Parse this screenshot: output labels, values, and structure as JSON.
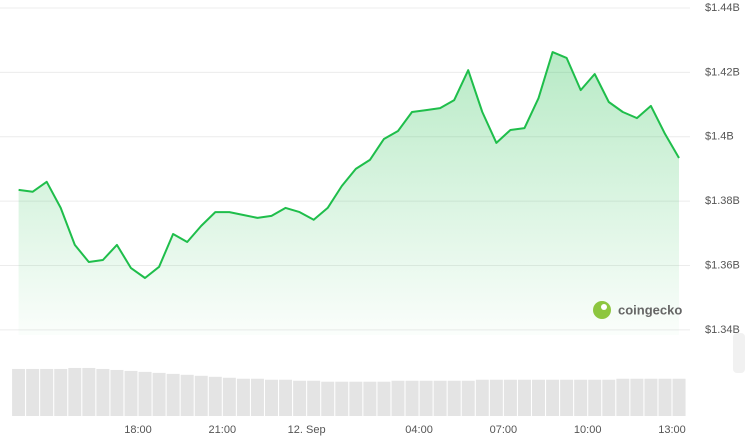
{
  "chart_data": [
    {
      "type": "area",
      "x": [
        13.75,
        14.25,
        14.75,
        15.25,
        15.75,
        16.25,
        16.75,
        17.25,
        17.75,
        18.25,
        18.75,
        19.25,
        19.75,
        20.25,
        20.75,
        21.25,
        21.75,
        22.25,
        22.75,
        23.25,
        23.75,
        24.25,
        24.75,
        25.25,
        25.75,
        26.25,
        26.75,
        27.25,
        27.75,
        28.25,
        28.75,
        29.25,
        29.75,
        30.25,
        30.75,
        31.25,
        31.75,
        32.25,
        32.75,
        33.25,
        33.75,
        34.25,
        34.75,
        35.25,
        35.75,
        36.25,
        36.75,
        37.25
      ],
      "values": [
        1.3835,
        1.3829,
        1.386,
        1.3779,
        1.3664,
        1.3611,
        1.3617,
        1.3664,
        1.3592,
        1.3561,
        1.3596,
        1.3698,
        1.3673,
        1.3723,
        1.3766,
        1.3766,
        1.3757,
        1.3748,
        1.3754,
        1.3779,
        1.3766,
        1.3742,
        1.3779,
        1.3847,
        1.39,
        1.3928,
        1.3993,
        1.4018,
        1.4077,
        1.4083,
        1.4089,
        1.4114,
        1.4207,
        1.4077,
        1.3981,
        1.4021,
        1.4027,
        1.412,
        1.4263,
        1.4245,
        1.4145,
        1.4195,
        1.4108,
        1.4077,
        1.4058,
        1.4096,
        1.4009,
        1.3934
      ],
      "color": "#1fbe4b",
      "xlim": [
        13.73,
        37.64
      ],
      "xticks": [
        {
          "value": 18,
          "label": "18:00"
        },
        {
          "value": 21,
          "label": "21:00"
        },
        {
          "value": 24,
          "label": "12. Sep"
        },
        {
          "value": 28,
          "label": "04:00"
        },
        {
          "value": 31,
          "label": "07:00"
        },
        {
          "value": 34,
          "label": "10:00"
        },
        {
          "value": 37,
          "label": "13:00"
        }
      ],
      "ylim": [
        1.3384,
        1.4425
      ],
      "yticks": [
        {
          "value": 1.44,
          "label": "$1.44B"
        },
        {
          "value": 1.42,
          "label": "$1.42B"
        },
        {
          "value": 1.4,
          "label": "$1.4B"
        },
        {
          "value": 1.38,
          "label": "$1.38B"
        },
        {
          "value": 1.36,
          "label": "$1.36B"
        },
        {
          "value": 1.34,
          "label": "$1.34B"
        }
      ],
      "grid": true,
      "watermark": "coingecko"
    },
    {
      "type": "bar",
      "x": [
        13.75,
        14.25,
        14.75,
        15.25,
        15.75,
        16.25,
        16.75,
        17.25,
        17.75,
        18.25,
        18.75,
        19.25,
        19.75,
        20.25,
        20.75,
        21.25,
        21.75,
        22.25,
        22.75,
        23.25,
        23.75,
        24.25,
        24.75,
        25.25,
        25.75,
        26.25,
        26.75,
        27.25,
        27.75,
        28.25,
        28.75,
        29.25,
        29.75,
        30.25,
        30.75,
        31.25,
        31.75,
        32.25,
        32.75,
        33.25,
        33.75,
        34.25,
        34.75,
        35.25,
        35.75,
        36.25,
        36.75,
        37.25
      ],
      "values": [
        48,
        48,
        48,
        48,
        49,
        49,
        48,
        47,
        46,
        45,
        44,
        43,
        42,
        41,
        40,
        39,
        38,
        38,
        37,
        37,
        36,
        36,
        35,
        35,
        35,
        35,
        35,
        36,
        36,
        36,
        36,
        36,
        36,
        37,
        37,
        37,
        37,
        37,
        37,
        37,
        37,
        37,
        37,
        38,
        38,
        38,
        38,
        38
      ],
      "color": "#e4e4e4",
      "xlim": [
        13.73,
        37.64
      ],
      "ylim": [
        0,
        50
      ]
    }
  ]
}
